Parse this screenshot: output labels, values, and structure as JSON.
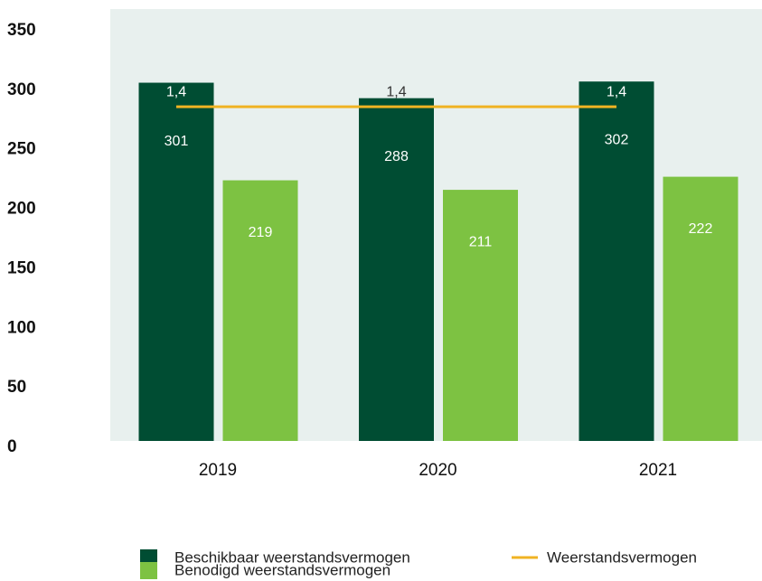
{
  "chart_data": {
    "type": "bar",
    "categories": [
      "2019",
      "2020",
      "2021"
    ],
    "series": [
      {
        "name": "Beschikbaar weerstandsvermogen",
        "color": "#004d33",
        "values": [
          301,
          288,
          302
        ]
      },
      {
        "name": "Benodigd weerstandsvermogen",
        "color": "#7dc242",
        "values": [
          219,
          211,
          222
        ]
      },
      {
        "name": "Weerstandsvermogen",
        "type": "line",
        "axis": "y2",
        "color": "#f0b323",
        "values": [
          1.4,
          1.4,
          1.4
        ],
        "value_labels": [
          "1,4",
          "1,4",
          "1,4"
        ]
      }
    ],
    "ylim": [
      0,
      350
    ],
    "yticks": [
      0,
      50,
      100,
      150,
      200,
      250,
      300,
      350
    ],
    "y2lim": [
      0,
      1.745
    ],
    "plot_background": "#e8f0ee"
  }
}
